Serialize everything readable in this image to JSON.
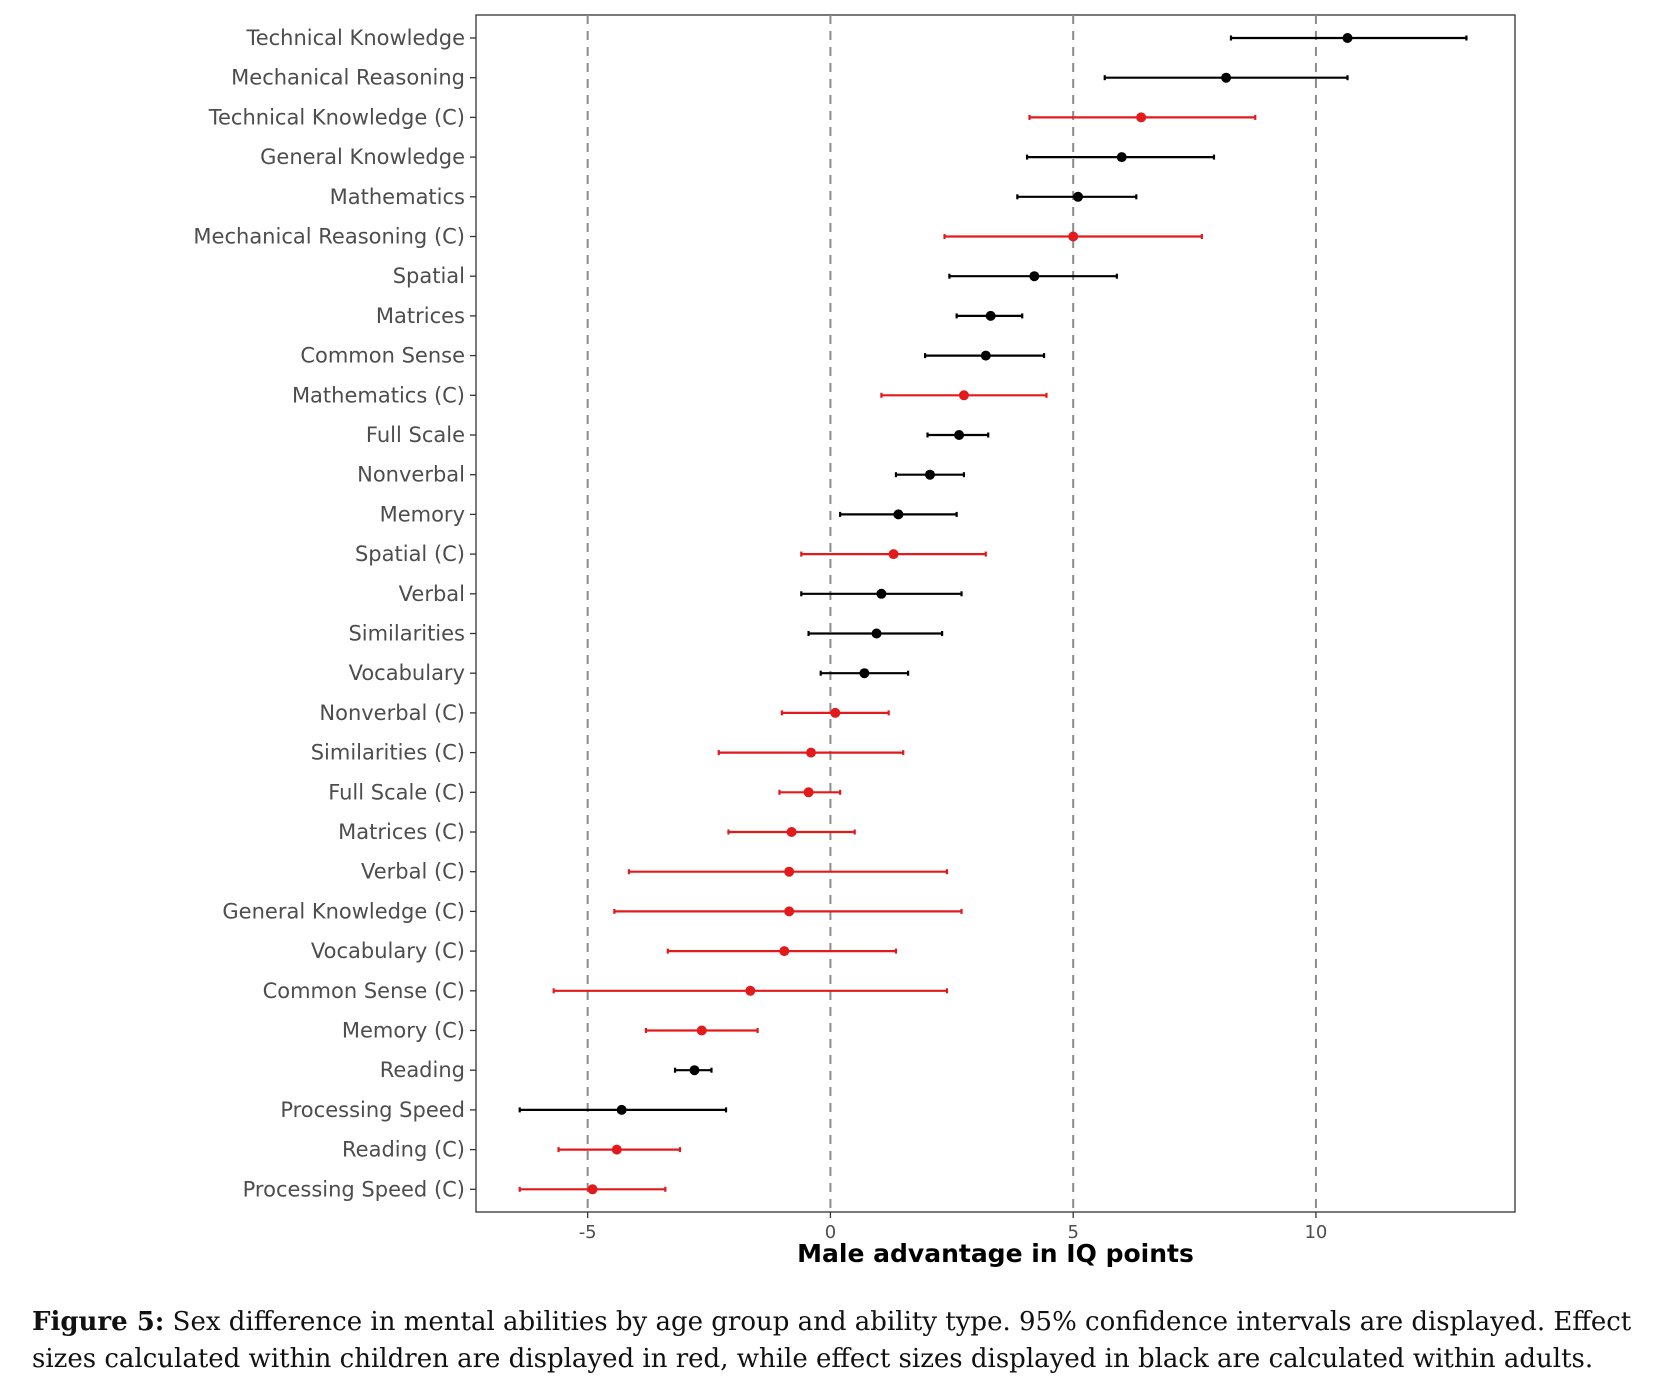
{
  "chart_data": {
    "type": "forest",
    "xlabel": "Male advantage in IQ points",
    "xlim": [
      -7.3,
      14.1
    ],
    "xticks": [
      -5,
      0,
      5,
      10
    ],
    "xtick_labels": [
      "-5",
      "0",
      "5",
      "10"
    ],
    "vlines": [
      -5,
      0,
      5,
      10
    ],
    "grid": false,
    "colors": {
      "adults": "#000000",
      "children": "#e31a1c",
      "vline": "#8c8c8c"
    },
    "legend": "none",
    "rows": [
      {
        "label": "Technical Knowledge",
        "group": "adults",
        "estimate": 10.65,
        "lower": 8.25,
        "upper": 13.1
      },
      {
        "label": "Mechanical Reasoning",
        "group": "adults",
        "estimate": 8.15,
        "lower": 5.65,
        "upper": 10.65
      },
      {
        "label": "Technical Knowledge (C)",
        "group": "children",
        "estimate": 6.4,
        "lower": 4.1,
        "upper": 8.75
      },
      {
        "label": "General Knowledge",
        "group": "adults",
        "estimate": 6.0,
        "lower": 4.05,
        "upper": 7.9
      },
      {
        "label": "Mathematics",
        "group": "adults",
        "estimate": 5.1,
        "lower": 3.85,
        "upper": 6.3
      },
      {
        "label": "Mechanical Reasoning (C)",
        "group": "children",
        "estimate": 5.0,
        "lower": 2.35,
        "upper": 7.65
      },
      {
        "label": "Spatial",
        "group": "adults",
        "estimate": 4.2,
        "lower": 2.45,
        "upper": 5.9
      },
      {
        "label": "Matrices",
        "group": "adults",
        "estimate": 3.3,
        "lower": 2.6,
        "upper": 3.95
      },
      {
        "label": "Common Sense",
        "group": "adults",
        "estimate": 3.2,
        "lower": 1.95,
        "upper": 4.4
      },
      {
        "label": "Mathematics (C)",
        "group": "children",
        "estimate": 2.75,
        "lower": 1.05,
        "upper": 4.45
      },
      {
        "label": "Full Scale",
        "group": "adults",
        "estimate": 2.65,
        "lower": 2.0,
        "upper": 3.25
      },
      {
        "label": "Nonverbal",
        "group": "adults",
        "estimate": 2.05,
        "lower": 1.35,
        "upper": 2.75
      },
      {
        "label": "Memory",
        "group": "adults",
        "estimate": 1.4,
        "lower": 0.2,
        "upper": 2.6
      },
      {
        "label": "Spatial (C)",
        "group": "children",
        "estimate": 1.3,
        "lower": -0.6,
        "upper": 3.2
      },
      {
        "label": "Verbal",
        "group": "adults",
        "estimate": 1.05,
        "lower": -0.6,
        "upper": 2.7
      },
      {
        "label": "Similarities",
        "group": "adults",
        "estimate": 0.95,
        "lower": -0.45,
        "upper": 2.3
      },
      {
        "label": "Vocabulary",
        "group": "adults",
        "estimate": 0.7,
        "lower": -0.2,
        "upper": 1.6
      },
      {
        "label": "Nonverbal (C)",
        "group": "children",
        "estimate": 0.1,
        "lower": -1.0,
        "upper": 1.2
      },
      {
        "label": "Similarities (C)",
        "group": "children",
        "estimate": -0.4,
        "lower": -2.3,
        "upper": 1.5
      },
      {
        "label": "Full Scale (C)",
        "group": "children",
        "estimate": -0.45,
        "lower": -1.05,
        "upper": 0.2
      },
      {
        "label": "Matrices (C)",
        "group": "children",
        "estimate": -0.8,
        "lower": -2.1,
        "upper": 0.5
      },
      {
        "label": "Verbal (C)",
        "group": "children",
        "estimate": -0.85,
        "lower": -4.15,
        "upper": 2.4
      },
      {
        "label": "General Knowledge (C)",
        "group": "children",
        "estimate": -0.85,
        "lower": -4.45,
        "upper": 2.7
      },
      {
        "label": "Vocabulary (C)",
        "group": "children",
        "estimate": -0.95,
        "lower": -3.35,
        "upper": 1.35
      },
      {
        "label": "Common Sense (C)",
        "group": "children",
        "estimate": -1.65,
        "lower": -5.7,
        "upper": 2.4
      },
      {
        "label": "Memory (C)",
        "group": "children",
        "estimate": -2.65,
        "lower": -3.8,
        "upper": -1.5
      },
      {
        "label": "Reading",
        "group": "adults",
        "estimate": -2.8,
        "lower": -3.2,
        "upper": -2.45
      },
      {
        "label": "Processing Speed",
        "group": "adults",
        "estimate": -4.3,
        "lower": -6.4,
        "upper": -2.15
      },
      {
        "label": "Reading (C)",
        "group": "children",
        "estimate": -4.4,
        "lower": -5.6,
        "upper": -3.1
      },
      {
        "label": "Processing Speed (C)",
        "group": "children",
        "estimate": -4.9,
        "lower": -6.4,
        "upper": -3.4
      }
    ]
  },
  "caption": {
    "label": "Figure 5:",
    "text": " Sex difference in mental abilities by age group and ability type. 95% confidence intervals are displayed. Effect sizes calculated within children are displayed in red, while effect sizes displayed in black are calculated within adults."
  }
}
